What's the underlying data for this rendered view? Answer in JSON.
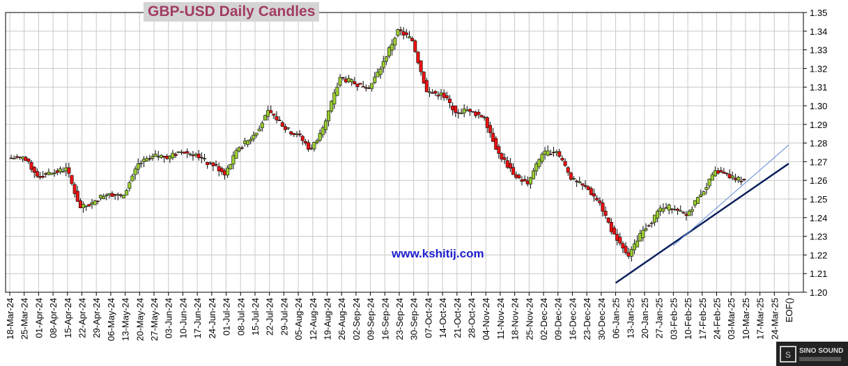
{
  "chart_data": {
    "type": "candlestick",
    "title": "GBP-USD Daily Candles",
    "watermark": "www.kshitij.com",
    "y_ticks": [
      1.2,
      1.21,
      1.22,
      1.23,
      1.24,
      1.25,
      1.26,
      1.27,
      1.28,
      1.29,
      1.3,
      1.31,
      1.32,
      1.33,
      1.34,
      1.35
    ],
    "ylim": [
      1.2,
      1.35
    ],
    "x_labels": [
      "18-Mar-24",
      "25-Mar-24",
      "01-Apr-24",
      "08-Apr-24",
      "15-Apr-24",
      "22-Apr-24",
      "29-Apr-24",
      "06-May-24",
      "13-May-24",
      "20-May-24",
      "27-May-24",
      "03-Jun-24",
      "10-Jun-24",
      "17-Jun-24",
      "24-Jun-24",
      "01-Jul-24",
      "08-Jul-24",
      "15-Jul-24",
      "22-Jul-24",
      "29-Jul-24",
      "05-Aug-24",
      "12-Aug-24",
      "19-Aug-24",
      "26-Aug-24",
      "02-Sep-24",
      "09-Sep-24",
      "16-Sep-24",
      "23-Sep-24",
      "30-Sep-24",
      "07-Oct-24",
      "14-Oct-24",
      "21-Oct-24",
      "28-Oct-24",
      "04-Nov-24",
      "11-Nov-24",
      "18-Nov-24",
      "25-Nov-24",
      "02-Dec-24",
      "09-Dec-24",
      "16-Dec-24",
      "23-Dec-24",
      "30-Dec-24",
      "06-Jan-25",
      "13-Jan-25",
      "20-Jan-25",
      "27-Jan-25",
      "03-Feb-25",
      "10-Feb-25",
      "17-Feb-25",
      "24-Feb-25",
      "03-Mar-25",
      "10-Mar-25",
      "17-Mar-25",
      "24-Mar-25",
      "EOF()"
    ],
    "weekly_closes": [
      1.272,
      1.263,
      1.264,
      1.266,
      1.245,
      1.248,
      1.254,
      1.251,
      1.269,
      1.272,
      1.273,
      1.276,
      1.274,
      1.268,
      1.264,
      1.278,
      1.284,
      1.296,
      1.29,
      1.284,
      1.276,
      1.291,
      1.315,
      1.312,
      1.31,
      1.323,
      1.34,
      1.335,
      1.308,
      1.306,
      1.297,
      1.298,
      1.294,
      1.274,
      1.264,
      1.258,
      1.274,
      1.276,
      1.262,
      1.256,
      1.248,
      1.23,
      1.22,
      1.233,
      1.242,
      1.246,
      1.241,
      1.253,
      1.264,
      1.262,
      1.26
    ],
    "up_color": "#9acd32",
    "down_color": "#ee1111",
    "trendlines": [
      {
        "from": [
          "06-Jan-25",
          1.205
        ],
        "to": [
          "EOF()",
          1.269
        ],
        "color": "#0a1f5c"
      },
      {
        "from": [
          "03-Feb-25",
          1.225
        ],
        "to": [
          "EOF()",
          1.279
        ],
        "color": "#5b86d6"
      }
    ]
  },
  "logo": {
    "text": "SINO SOUND"
  }
}
